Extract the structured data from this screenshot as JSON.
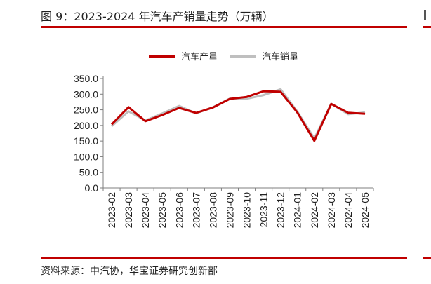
{
  "header": {
    "title": "图 9：2023-2024 年汽车产销量走势（万辆）"
  },
  "footer": {
    "source": "资料来源：中汽协，华宝证券研究创新部"
  },
  "colors": {
    "accent": "#c00000",
    "series_production": "#c00000",
    "series_sales": "#bfbfbf"
  },
  "chart_data": {
    "type": "line",
    "title": "",
    "xlabel": "",
    "ylabel": "",
    "categories": [
      "2023-02",
      "2023-03",
      "2023-04",
      "2023-05",
      "2023-06",
      "2023-07",
      "2023-08",
      "2023-09",
      "2023-10",
      "2023-11",
      "2023-12",
      "2024-01",
      "2024-02",
      "2024-03",
      "2024-04",
      "2024-05"
    ],
    "series": [
      {
        "name": "汽车产量",
        "values": [
          203.2,
          258.4,
          213.5,
          233.3,
          256.1,
          240.1,
          257.4,
          285.0,
          291.2,
          309.3,
          307.7,
          241.0,
          150.8,
          268.7,
          240.6,
          237.2
        ]
      },
      {
        "name": "汽车销量",
        "values": [
          197.6,
          245.1,
          216.0,
          238.2,
          262.2,
          238.7,
          258.2,
          285.8,
          285.3,
          297.0,
          315.6,
          243.9,
          158.4,
          269.4,
          235.9,
          241.7
        ]
      }
    ],
    "yticks": [
      "0.0",
      "50.0",
      "100.0",
      "150.0",
      "200.0",
      "250.0",
      "300.0",
      "350.0"
    ],
    "ylim": [
      0,
      350
    ],
    "grid": false,
    "legend": "top-center"
  }
}
